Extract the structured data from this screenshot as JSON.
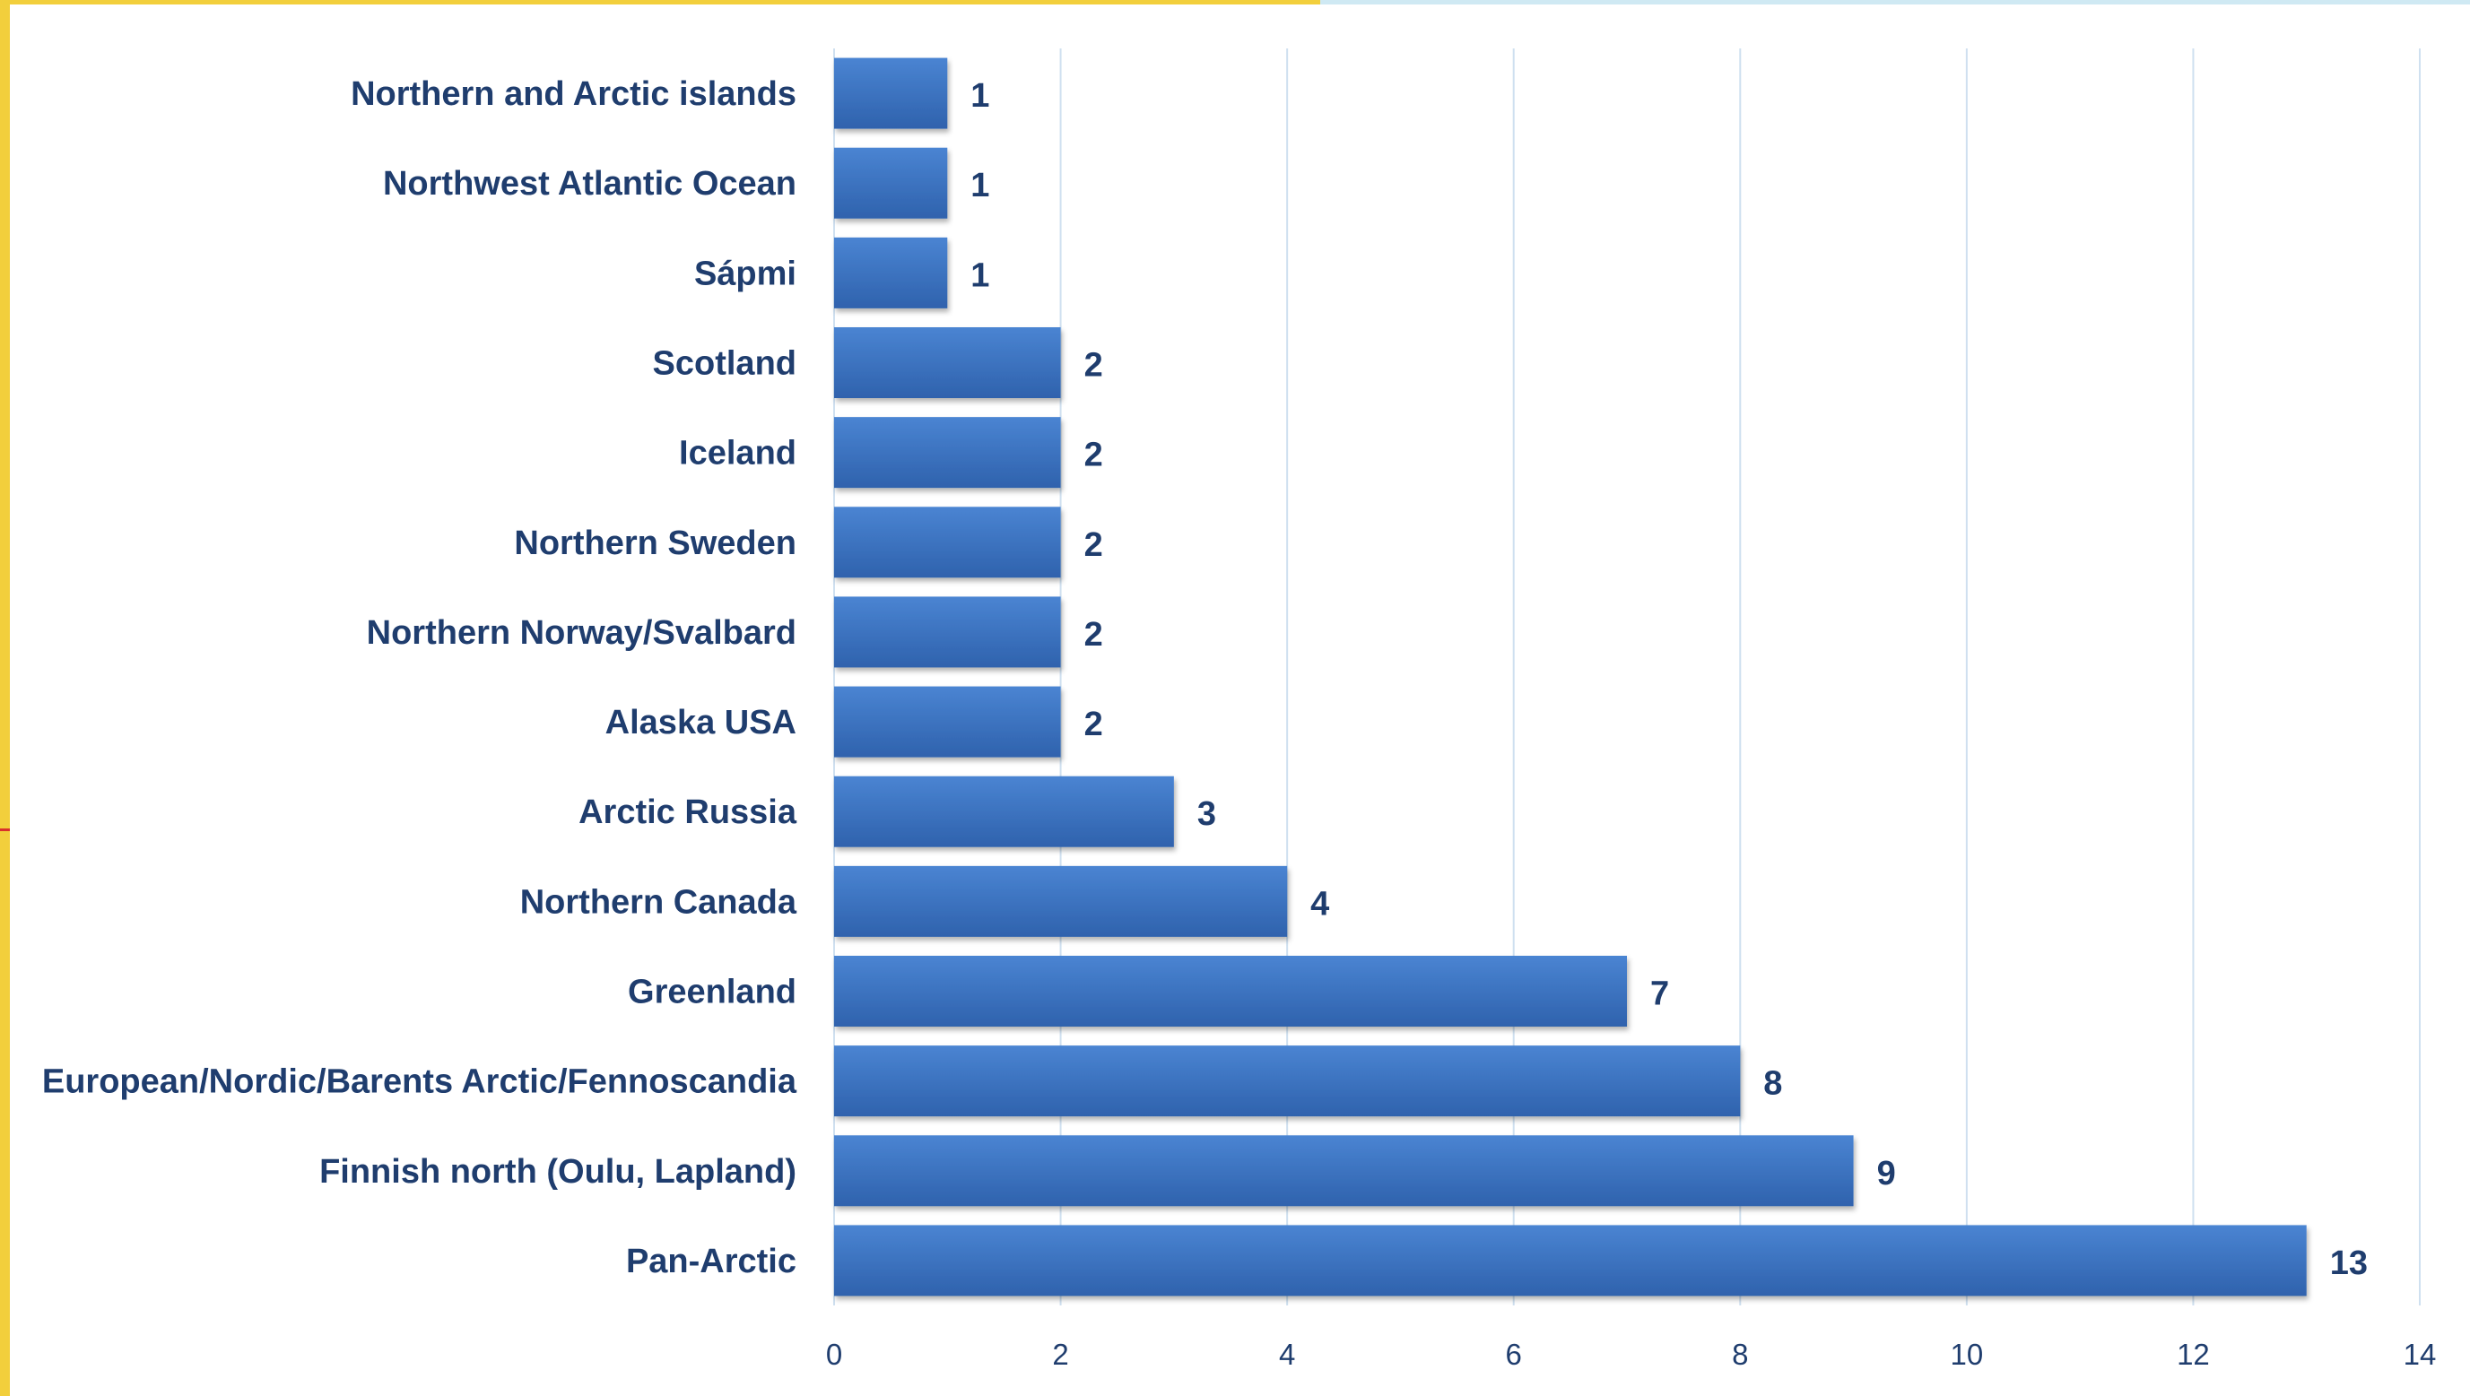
{
  "chart_data": {
    "type": "bar",
    "orientation": "horizontal",
    "categories": [
      "Northern and Arctic islands",
      "Northwest Atlantic Ocean",
      "Sápmi",
      "Scotland",
      "Iceland",
      "Northern Sweden",
      "Northern Norway/Svalbard",
      "Alaska USA",
      "Arctic Russia",
      "Northern Canada",
      "Greenland",
      "European/Nordic/Barents Arctic/Fennoscandia",
      "Finnish north (Oulu, Lapland)",
      "Pan-Arctic"
    ],
    "values": [
      1,
      1,
      1,
      2,
      2,
      2,
      2,
      2,
      3,
      4,
      7,
      8,
      9,
      13
    ],
    "title": "",
    "xlabel": "",
    "ylabel": "",
    "xlim": [
      0,
      14
    ],
    "xticks": [
      "0",
      "2",
      "4",
      "6",
      "8",
      "10",
      "12",
      "14"
    ],
    "grid": true,
    "data_labels": true,
    "bar_color": "#3f76c4"
  },
  "colors": {
    "bar_top": "#4a84d2",
    "bar_bottom": "#2f62ad",
    "text": "#1f3d6e",
    "grid": "#cfe0f0",
    "frame_yellow": "#f2cf3c",
    "frame_blue": "#cfe9f3"
  }
}
